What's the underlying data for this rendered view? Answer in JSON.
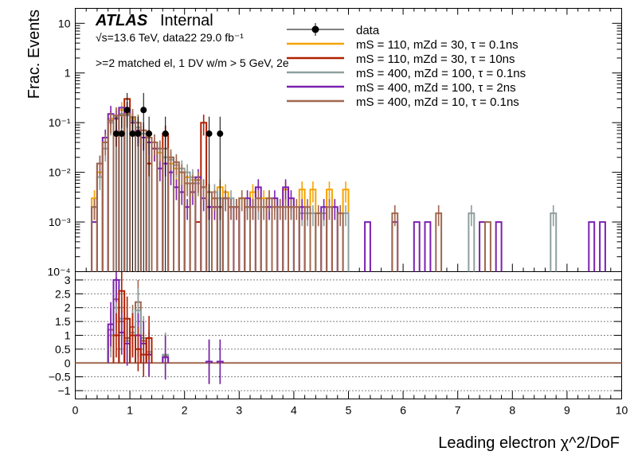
{
  "header": {
    "atlas": "ATLAS",
    "internal": "Internal",
    "energy_line": "√s=13.6 TeV, data22 29.0 fb⁻¹",
    "selection": ">=2 matched el, 1 DV w/m > 5 GeV, 2e"
  },
  "colors": {
    "data": "#000000",
    "s1": "#f5a300",
    "s2": "#b22000",
    "s3": "#8e9f9e",
    "s4": "#7b20b0",
    "s5": "#a0674f"
  },
  "chart_data": [
    {
      "type": "line",
      "panel": "top",
      "ylabel": "Frac. Events",
      "yscale": "log",
      "ylim": [
        0.0001,
        20
      ],
      "xlim": [
        0,
        10
      ],
      "y_ticks": [
        "10⁻⁴",
        "10⁻³",
        "10⁻²",
        "10⁻¹",
        "1",
        "10"
      ],
      "legend": [
        {
          "label": "data",
          "color_key": "data",
          "kind": "marker"
        },
        {
          "label": "mS = 110, mZd = 30, τ = 0.1ns",
          "color_key": "s1",
          "kind": "line"
        },
        {
          "label": "mS = 110, mZd = 30, τ = 10ns",
          "color_key": "s2",
          "kind": "line"
        },
        {
          "label": "mS = 400, mZd = 100, τ = 0.1ns",
          "color_key": "s3",
          "kind": "line"
        },
        {
          "label": "mS = 400, mZd = 100, τ = 2ns",
          "color_key": "s4",
          "kind": "line"
        },
        {
          "label": "mS = 400, mZd = 10, τ = 0.1ns",
          "color_key": "s5",
          "kind": "line"
        }
      ],
      "data_points": {
        "x": [
          0.75,
          0.85,
          0.95,
          1.05,
          1.15,
          1.25,
          1.35,
          1.65,
          2.45,
          2.65
        ],
        "y": [
          0.06,
          0.06,
          0.18,
          0.06,
          0.06,
          0.18,
          0.06,
          0.06,
          0.06,
          0.06
        ]
      },
      "series": [
        {
          "color_key": "s1",
          "x": [
            0.35,
            0.45,
            0.55,
            0.65,
            0.75,
            0.85,
            0.95,
            1.05,
            1.15,
            1.25,
            1.35,
            1.45,
            1.55,
            1.65,
            1.75,
            1.85,
            1.95,
            2.05,
            2.15,
            2.25,
            2.35,
            2.45,
            2.55,
            2.65,
            2.75,
            3.05,
            3.25,
            3.45,
            3.55,
            3.85,
            4.15,
            4.35,
            4.65,
            4.95
          ],
          "values": [
            0.003,
            0.01,
            0.04,
            0.12,
            0.14,
            0.18,
            0.15,
            0.12,
            0.08,
            0.06,
            0.04,
            0.03,
            0.025,
            0.02,
            0.015,
            0.012,
            0.01,
            0.008,
            0.007,
            0.006,
            0.005,
            0.004,
            0.003,
            0.005,
            0.004,
            0.003,
            0.004,
            0.003,
            0.003,
            0.0045,
            0.0045,
            0.0045,
            0.0045,
            0.0045
          ]
        },
        {
          "color_key": "s2",
          "x": [
            0.75,
            0.95,
            1.05,
            1.15,
            1.25,
            1.35,
            1.65,
            2.25,
            2.35,
            2.45,
            2.65
          ],
          "values": [
            0.06,
            0.3,
            0.1,
            0.06,
            0.05,
            0.015,
            0.06,
            0.001,
            0.1,
            0.002,
            0.002
          ]
        },
        {
          "color_key": "s3",
          "x": [
            0.35,
            0.45,
            0.55,
            0.65,
            0.75,
            0.85,
            0.95,
            1.05,
            1.15,
            1.25,
            1.35,
            1.45,
            1.55,
            1.65,
            1.75,
            1.85,
            1.95,
            2.05,
            2.15,
            2.25,
            2.35,
            2.45,
            2.55,
            2.65,
            2.75,
            2.85,
            2.95,
            3.15,
            3.35,
            3.55,
            3.75,
            3.95,
            4.15,
            4.25,
            4.35,
            4.55,
            4.85,
            4.95,
            7.25,
            8.75
          ],
          "values": [
            0.002,
            0.008,
            0.03,
            0.1,
            0.13,
            0.15,
            0.14,
            0.11,
            0.08,
            0.06,
            0.05,
            0.04,
            0.03,
            0.02,
            0.018,
            0.014,
            0.012,
            0.01,
            0.008,
            0.006,
            0.005,
            0.004,
            0.004,
            0.003,
            0.003,
            0.003,
            0.002,
            0.002,
            0.002,
            0.002,
            0.002,
            0.002,
            0.0015,
            0.0015,
            0.0015,
            0.0015,
            0.0015,
            0.0015,
            0.0015,
            0.0015
          ]
        },
        {
          "color_key": "s4",
          "x": [
            0.35,
            0.45,
            0.55,
            0.65,
            0.75,
            0.85,
            0.95,
            1.05,
            1.15,
            1.25,
            1.35,
            1.45,
            1.55,
            1.65,
            1.75,
            1.85,
            1.95,
            2.05,
            2.15,
            2.25,
            2.35,
            2.45,
            2.55,
            2.65,
            2.75,
            2.85,
            2.95,
            3.15,
            3.25,
            3.35,
            3.55,
            3.65,
            3.85,
            3.95,
            4.15,
            4.55,
            4.75,
            5.35,
            5.85,
            6.25,
            6.45,
            7.45,
            7.75,
            9.45,
            9.65
          ],
          "values": [
            0.001,
            0.015,
            0.05,
            0.15,
            0.12,
            0.2,
            0.18,
            0.1,
            0.07,
            0.05,
            0.04,
            0.03,
            0.012,
            0.015,
            0.01,
            0.005,
            0.004,
            0.002,
            0.004,
            0.008,
            0.003,
            0.002,
            0.002,
            0.002,
            0.003,
            0.002,
            0.002,
            0.003,
            0.002,
            0.005,
            0.002,
            0.003,
            0.005,
            0.003,
            0.002,
            0.002,
            0.002,
            0.001,
            0.001,
            0.001,
            0.001,
            0.001,
            0.001,
            0.001,
            0.001
          ]
        },
        {
          "color_key": "s5",
          "x": [
            0.35,
            0.45,
            0.55,
            0.65,
            0.75,
            0.85,
            0.95,
            1.05,
            1.15,
            1.25,
            1.35,
            1.45,
            1.55,
            1.65,
            1.75,
            1.85,
            1.95,
            2.05,
            2.15,
            2.25,
            2.35,
            2.45,
            2.55,
            2.65,
            2.75,
            2.85,
            2.95,
            3.05,
            3.15,
            3.25,
            3.35,
            3.45,
            3.55,
            3.65,
            3.75,
            3.85,
            3.95,
            4.05,
            4.25,
            4.45,
            4.65,
            4.85,
            5.85,
            6.65,
            7.55
          ],
          "values": [
            0.002,
            0.015,
            0.04,
            0.11,
            0.14,
            0.14,
            0.15,
            0.13,
            0.1,
            0.07,
            0.05,
            0.04,
            0.03,
            0.03,
            0.02,
            0.016,
            0.01,
            0.006,
            0.006,
            0.007,
            0.005,
            0.004,
            0.003,
            0.002,
            0.003,
            0.002,
            0.002,
            0.003,
            0.002,
            0.002,
            0.003,
            0.002,
            0.003,
            0.002,
            0.002,
            0.002,
            0.002,
            0.002,
            0.002,
            0.0015,
            0.002,
            0.0015,
            0.0015,
            0.0015,
            0.001
          ]
        }
      ]
    },
    {
      "type": "line",
      "panel": "bottom",
      "xlabel": "Leading electron χ^2/DoF",
      "ylim": [
        -1.3,
        3.3
      ],
      "xlim": [
        0,
        10
      ],
      "x_ticks": [
        "0",
        "1",
        "2",
        "3",
        "4",
        "5",
        "6",
        "7",
        "8",
        "9",
        "10"
      ],
      "y_ticks": [
        "−1",
        "−0.5",
        "0",
        "0.5",
        "1",
        "1.5",
        "2",
        "2.5",
        "3"
      ],
      "grid_y": [
        -1,
        -0.5,
        0,
        0.5,
        1,
        1.5,
        2,
        2.5,
        3
      ],
      "series": [
        {
          "color_key": "s5",
          "x": [
            0.65,
            0.75,
            0.85,
            0.95,
            1.05,
            1.15,
            1.25,
            1.35,
            1.65,
            2.45,
            2.65
          ],
          "values": [
            1.2,
            2.3,
            1.5,
            0.9,
            1.3,
            2.2,
            0.8,
            0.3,
            0.25,
            0.03,
            0.03
          ]
        },
        {
          "color_key": "s3",
          "x": [
            0.65,
            0.75,
            0.85,
            0.95,
            1.05,
            1.15,
            1.25,
            1.35,
            1.65,
            2.45,
            2.65
          ],
          "values": [
            1.0,
            2.0,
            1.6,
            0.8,
            1.1,
            1.9,
            0.9,
            0.4,
            0.3,
            0.04,
            0.04
          ]
        },
        {
          "color_key": "s4",
          "x": [
            0.65,
            0.75,
            0.85,
            0.95,
            1.05,
            1.15,
            1.25,
            1.35,
            1.65,
            2.45,
            2.65
          ],
          "values": [
            1.4,
            3.0,
            1.1,
            0.7,
            1.0,
            1.0,
            0.7,
            0.3,
            0.2,
            0.05,
            0.05
          ]
        },
        {
          "color_key": "s2",
          "x": [
            0.75,
            0.85,
            0.95,
            1.05,
            1.15,
            1.25,
            1.35
          ],
          "values": [
            1.0,
            2.6,
            1.6,
            1.0,
            0.5,
            0.3,
            0.9
          ]
        }
      ]
    }
  ]
}
